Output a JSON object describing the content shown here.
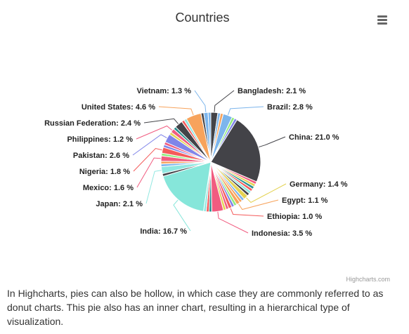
{
  "credits": "Highcharts.com",
  "caption": "In Highcharts, pies can also be hollow, in which case they are commonly referred to as donut charts. This pie also has an inner chart, resulting in a hierarchical type of visualization.",
  "menu_icon": "hamburger-menu-icon",
  "colors": {
    "labels": "#222222",
    "title": "#333333"
  },
  "chart_data": {
    "type": "pie",
    "title": "Countries",
    "legend": "none",
    "labeled_slices": [
      {
        "name": "China",
        "value": 21.0,
        "color": "#434348"
      },
      {
        "name": "India",
        "value": 16.7,
        "color": "#86e6da"
      },
      {
        "name": "United States",
        "value": 4.6,
        "color": "#f7a35c"
      },
      {
        "name": "Indonesia",
        "value": 3.5,
        "color": "#f15c80"
      },
      {
        "name": "Brazil",
        "value": 2.8,
        "color": "#7cb5ec"
      },
      {
        "name": "Pakistan",
        "value": 2.6,
        "color": "#8085e9"
      },
      {
        "name": "Russian Federation",
        "value": 2.4,
        "color": "#434348"
      },
      {
        "name": "Bangladesh",
        "value": 2.1,
        "color": "#434348"
      },
      {
        "name": "Japan",
        "value": 2.1,
        "color": "#91e8e1"
      },
      {
        "name": "Nigeria",
        "value": 1.8,
        "color": "#f45b5b"
      },
      {
        "name": "Mexico",
        "value": 1.6,
        "color": "#f15c80"
      },
      {
        "name": "Germany",
        "value": 1.4,
        "color": "#e4d354"
      },
      {
        "name": "Vietnam",
        "value": 1.3,
        "color": "#7cb5ec"
      },
      {
        "name": "Philippines",
        "value": 1.2,
        "color": "#f15c80"
      },
      {
        "name": "Egypt",
        "value": 1.1,
        "color": "#f7a35c"
      },
      {
        "name": "Ethiopia",
        "value": 1.0,
        "color": "#f45b5b"
      }
    ],
    "unlabeled_slice_count": 40,
    "unlabeled_total": 33.0
  }
}
